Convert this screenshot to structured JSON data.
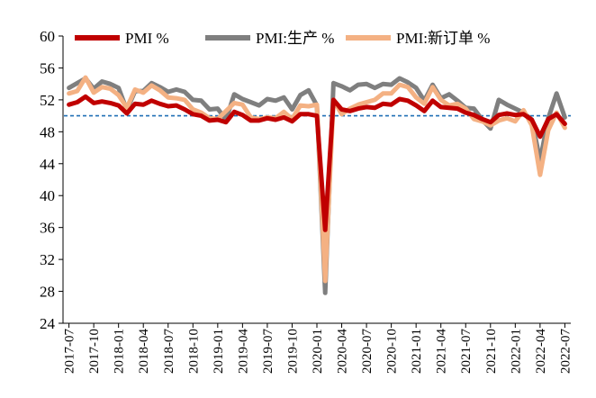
{
  "chart_data": {
    "type": "line",
    "title": "",
    "xlabel": "",
    "ylabel": "",
    "ylim": [
      24,
      60
    ],
    "yticks": [
      24,
      28,
      32,
      36,
      40,
      44,
      48,
      52,
      56,
      60
    ],
    "x": [
      "2017-07",
      "2017-08",
      "2017-09",
      "2017-10",
      "2017-11",
      "2017-12",
      "2018-01",
      "2018-02",
      "2018-03",
      "2018-04",
      "2018-05",
      "2018-06",
      "2018-07",
      "2018-08",
      "2018-09",
      "2018-10",
      "2018-11",
      "2018-12",
      "2019-01",
      "2019-02",
      "2019-03",
      "2019-04",
      "2019-05",
      "2019-06",
      "2019-07",
      "2019-08",
      "2019-09",
      "2019-10",
      "2019-11",
      "2019-12",
      "2020-01",
      "2020-02",
      "2020-03",
      "2020-04",
      "2020-05",
      "2020-06",
      "2020-07",
      "2020-08",
      "2020-09",
      "2020-10",
      "2020-11",
      "2020-12",
      "2021-01",
      "2021-02",
      "2021-03",
      "2021-04",
      "2021-05",
      "2021-06",
      "2021-07",
      "2021-08",
      "2021-09",
      "2021-10",
      "2021-11",
      "2021-12",
      "2022-01",
      "2022-02",
      "2022-03",
      "2022-04",
      "2022-05",
      "2022-06",
      "2022-07"
    ],
    "xtick_labels": [
      "2017-07",
      "2017-10",
      "2018-01",
      "2018-04",
      "2018-07",
      "2018-10",
      "2019-01",
      "2019-04",
      "2019-07",
      "2019-10",
      "2020-01",
      "2020-04",
      "2020-07",
      "2020-10",
      "2021-01",
      "2021-04",
      "2021-07",
      "2021-10",
      "2022-01",
      "2022-04",
      "2022-07"
    ],
    "reference_line": {
      "value": 50,
      "color": "#1f6fb5",
      "style": "dashed"
    },
    "legend_position": "top",
    "series": [
      {
        "name": "PMI %",
        "color": "#c00000",
        "values": [
          51.4,
          51.7,
          52.4,
          51.6,
          51.8,
          51.6,
          51.3,
          50.3,
          51.5,
          51.4,
          51.9,
          51.5,
          51.2,
          51.3,
          50.8,
          50.2,
          50.0,
          49.4,
          49.5,
          49.2,
          50.5,
          50.1,
          49.4,
          49.4,
          49.7,
          49.5,
          49.8,
          49.3,
          50.2,
          50.2,
          50.0,
          35.7,
          52.0,
          50.8,
          50.6,
          50.9,
          51.1,
          51.0,
          51.5,
          51.4,
          52.1,
          51.9,
          51.3,
          50.6,
          51.9,
          51.1,
          51.0,
          50.9,
          50.4,
          50.1,
          49.6,
          49.2,
          50.1,
          50.3,
          50.1,
          50.2,
          49.5,
          47.4,
          49.6,
          50.2,
          49.0
        ]
      },
      {
        "name": "PMI:生产 %",
        "color": "#7f7f7f",
        "values": [
          53.5,
          54.1,
          54.7,
          53.4,
          54.3,
          54.0,
          53.5,
          50.7,
          53.1,
          53.1,
          54.1,
          53.6,
          53.0,
          53.3,
          53.0,
          52.0,
          51.9,
          50.8,
          50.9,
          49.5,
          52.7,
          52.1,
          51.7,
          51.3,
          52.1,
          51.9,
          52.3,
          50.8,
          52.6,
          53.2,
          51.3,
          27.8,
          54.1,
          53.7,
          53.2,
          53.9,
          54.0,
          53.5,
          54.0,
          53.9,
          54.7,
          54.2,
          53.5,
          51.9,
          53.9,
          52.2,
          52.7,
          51.9,
          51.0,
          50.9,
          49.5,
          48.4,
          52.0,
          51.4,
          50.9,
          50.4,
          49.5,
          44.4,
          49.7,
          52.8,
          49.8
        ]
      },
      {
        "name": "PMI:新订单 %",
        "color": "#f4b183",
        "values": [
          52.8,
          53.1,
          54.8,
          52.9,
          53.6,
          53.4,
          52.6,
          51.0,
          53.3,
          52.9,
          53.8,
          53.2,
          52.3,
          52.2,
          52.0,
          50.8,
          50.4,
          49.7,
          49.6,
          50.6,
          51.6,
          51.4,
          49.8,
          49.6,
          49.8,
          49.7,
          50.5,
          49.6,
          51.3,
          51.2,
          51.4,
          29.3,
          52.0,
          50.2,
          50.9,
          51.4,
          51.7,
          52.0,
          52.8,
          52.8,
          53.9,
          53.6,
          52.3,
          51.5,
          53.6,
          52.0,
          51.3,
          51.5,
          50.9,
          49.6,
          49.3,
          48.8,
          49.4,
          49.7,
          49.3,
          50.7,
          48.8,
          42.6,
          48.2,
          50.4,
          48.5
        ]
      }
    ]
  }
}
